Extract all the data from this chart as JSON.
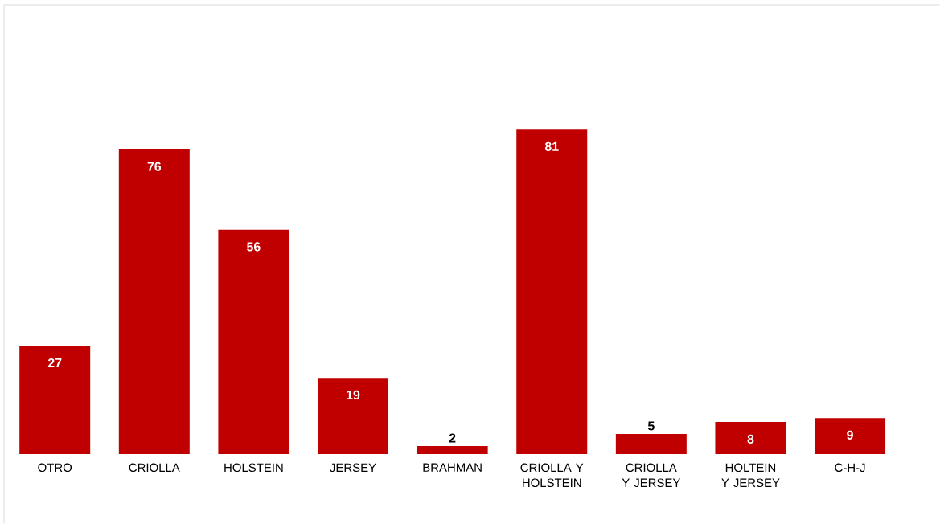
{
  "chart_data": {
    "type": "bar",
    "categories": [
      "OTRO",
      "CRIOLLA",
      "HOLSTEIN",
      "JERSEY",
      "BRAHMAN",
      "CRIOLLA Y HOLSTEIN",
      "CRIOLLA Y JERSEY",
      "HOLTEIN Y JERSEY",
      "C-H-J"
    ],
    "values": [
      27,
      76,
      56,
      19,
      2,
      81,
      5,
      8,
      9
    ],
    "color": "#c00000",
    "data_labels": true
  }
}
